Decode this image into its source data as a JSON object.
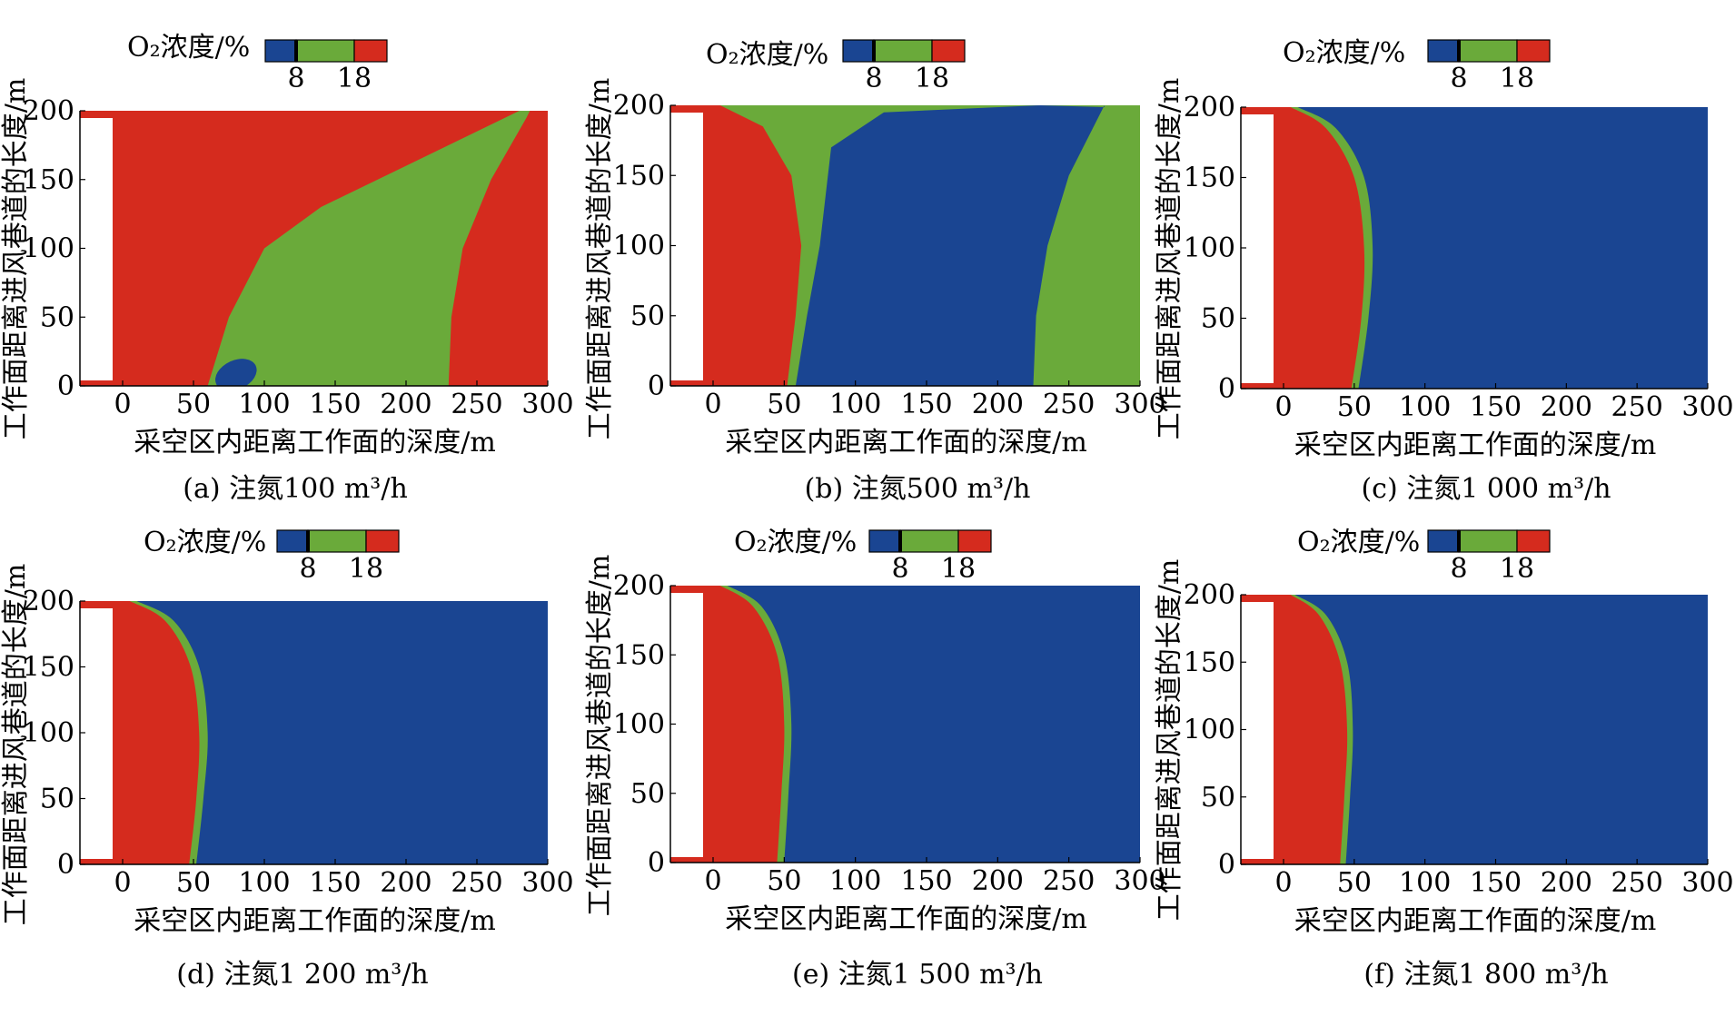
{
  "figure": {
    "panels": [
      {
        "caption": "(a) 注氮100 m³/h",
        "case": "a"
      },
      {
        "caption": "(b) 注氮500 m³/h",
        "case": "b"
      },
      {
        "caption": "(c) 注氮1 000 m³/h",
        "case": "c"
      },
      {
        "caption": "(d) 注氮1 200 m³/h",
        "case": "d"
      },
      {
        "caption": "(e) 注氮1 500 m³/h",
        "case": "e"
      },
      {
        "caption": "(f) 注氮1 800 m³/h",
        "case": "f"
      }
    ]
  },
  "chart_data": [
    {
      "type": "heatmap",
      "subplot": "a",
      "xlabel": "采空区内距离工作面的深度/m",
      "ylabel": "工作面距离进风巷道的长度/m",
      "xlim": [
        -30,
        300
      ],
      "ylim": [
        0,
        200
      ],
      "xticks": [
        0,
        50,
        100,
        150,
        200,
        250,
        300
      ],
      "yticks": [
        0,
        50,
        100,
        150,
        200
      ],
      "legend": {
        "title": "O₂浓度/%",
        "thresholds": [
          8,
          18
        ],
        "colors": [
          "#1a4592",
          "#6aaa3a",
          "#d52b1e"
        ],
        "placement": "top"
      },
      "regions_description": "Red (>18%) near working face and at deep far side (>240 m); green band (8-18%) diagonal from x≈60 at bottom to x≈230 at top; small blue (<8%) patch near x≈80, y≈10.",
      "boundaries": {
        "red_green": [
          [
            60,
            0
          ],
          [
            75,
            50
          ],
          [
            100,
            100
          ],
          [
            140,
            130
          ],
          [
            200,
            160
          ],
          [
            280,
            200
          ]
        ],
        "green_red_far": [
          [
            230,
            0
          ],
          [
            232,
            50
          ],
          [
            240,
            100
          ],
          [
            260,
            150
          ],
          [
            285,
            195
          ]
        ],
        "blue_patch_center": [
          80,
          8
        ]
      }
    },
    {
      "type": "heatmap",
      "subplot": "b",
      "xlabel": "采空区内距离工作面的深度/m",
      "ylabel": "工作面距离进风巷道的长度/m",
      "xlim": [
        -30,
        300
      ],
      "ylim": [
        0,
        200
      ],
      "xticks": [
        0,
        50,
        100,
        150,
        200,
        250,
        300
      ],
      "yticks": [
        0,
        50,
        100,
        150,
        200
      ],
      "legend": {
        "title": "O₂浓度/%",
        "thresholds": [
          8,
          18
        ],
        "colors": [
          "#1a4592",
          "#6aaa3a",
          "#d52b1e"
        ],
        "placement": "top"
      },
      "regions_description": "Red zone near face to x≈50-65; thin green band; blue central zone to x≈225; green far zone beyond.",
      "boundaries": {
        "red_green": [
          [
            52,
            0
          ],
          [
            58,
            50
          ],
          [
            62,
            100
          ],
          [
            55,
            150
          ],
          [
            35,
            185
          ],
          [
            5,
            200
          ]
        ],
        "green_blue": [
          [
            58,
            0
          ],
          [
            66,
            50
          ],
          [
            75,
            100
          ],
          [
            83,
            170
          ],
          [
            120,
            195
          ],
          [
            230,
            200
          ]
        ],
        "blue_green_far": [
          [
            225,
            0
          ],
          [
            227,
            50
          ],
          [
            235,
            100
          ],
          [
            250,
            150
          ],
          [
            275,
            200
          ]
        ]
      }
    },
    {
      "type": "heatmap",
      "subplot": "c",
      "xlabel": "采空区内距离工作面的深度/m",
      "ylabel": "工作面距离进风巷道的长度/m",
      "xlim": [
        -30,
        300
      ],
      "ylim": [
        0,
        200
      ],
      "xticks": [
        0,
        50,
        100,
        150,
        200,
        250,
        300
      ],
      "yticks": [
        0,
        50,
        100,
        150,
        200
      ],
      "legend": {
        "title": "O₂浓度/%",
        "thresholds": [
          8,
          18
        ],
        "colors": [
          "#1a4592",
          "#6aaa3a",
          "#d52b1e"
        ],
        "placement": "top"
      },
      "boundaries": {
        "red_green": [
          [
            48,
            0
          ],
          [
            55,
            50
          ],
          [
            57,
            100
          ],
          [
            50,
            150
          ],
          [
            30,
            185
          ],
          [
            5,
            200
          ]
        ],
        "green_blue": [
          [
            53,
            0
          ],
          [
            60,
            50
          ],
          [
            63,
            100
          ],
          [
            57,
            150
          ],
          [
            37,
            185
          ],
          [
            10,
            200
          ]
        ]
      }
    },
    {
      "type": "heatmap",
      "subplot": "d",
      "xlabel": "采空区内距离工作面的深度/m",
      "ylabel": "工作面距离进风巷道的长度/m",
      "xlim": [
        -30,
        300
      ],
      "ylim": [
        0,
        200
      ],
      "xticks": [
        0,
        50,
        100,
        150,
        200,
        250,
        300
      ],
      "yticks": [
        0,
        50,
        100,
        150,
        200
      ],
      "legend": {
        "title": "O₂浓度/%",
        "thresholds": [
          8,
          18
        ],
        "colors": [
          "#1a4592",
          "#6aaa3a",
          "#d52b1e"
        ],
        "placement": "top"
      },
      "boundaries": {
        "red_green": [
          [
            47,
            0
          ],
          [
            52,
            50
          ],
          [
            54,
            100
          ],
          [
            48,
            150
          ],
          [
            30,
            185
          ],
          [
            5,
            200
          ]
        ],
        "green_blue": [
          [
            52,
            0
          ],
          [
            57,
            50
          ],
          [
            60,
            100
          ],
          [
            54,
            150
          ],
          [
            36,
            185
          ],
          [
            10,
            200
          ]
        ]
      }
    },
    {
      "type": "heatmap",
      "subplot": "e",
      "xlabel": "采空区内距离工作面的深度/m",
      "ylabel": "工作面距离进风巷道的长度/m",
      "xlim": [
        -30,
        300
      ],
      "ylim": [
        0,
        200
      ],
      "xticks": [
        0,
        50,
        100,
        150,
        200,
        250,
        300
      ],
      "yticks": [
        0,
        50,
        100,
        150,
        200
      ],
      "legend": {
        "title": "O₂浓度/%",
        "thresholds": [
          8,
          18
        ],
        "colors": [
          "#1a4592",
          "#6aaa3a",
          "#d52b1e"
        ],
        "placement": "top"
      },
      "boundaries": {
        "red_green": [
          [
            45,
            0
          ],
          [
            48,
            50
          ],
          [
            50,
            100
          ],
          [
            45,
            150
          ],
          [
            28,
            185
          ],
          [
            5,
            200
          ]
        ],
        "green_blue": [
          [
            50,
            0
          ],
          [
            53,
            50
          ],
          [
            55,
            100
          ],
          [
            50,
            150
          ],
          [
            34,
            185
          ],
          [
            10,
            200
          ]
        ]
      }
    },
    {
      "type": "heatmap",
      "subplot": "f",
      "xlabel": "采空区内距离工作面的深度/m",
      "ylabel": "工作面距离进风巷道的长度/m",
      "xlim": [
        -30,
        300
      ],
      "ylim": [
        0,
        200
      ],
      "xticks": [
        0,
        50,
        100,
        150,
        200,
        250,
        300
      ],
      "yticks": [
        0,
        50,
        100,
        150,
        200
      ],
      "legend": {
        "title": "O₂浓度/%",
        "thresholds": [
          8,
          18
        ],
        "colors": [
          "#1a4592",
          "#6aaa3a",
          "#d52b1e"
        ],
        "placement": "top"
      },
      "boundaries": {
        "red_green": [
          [
            40,
            0
          ],
          [
            43,
            50
          ],
          [
            45,
            100
          ],
          [
            40,
            150
          ],
          [
            25,
            185
          ],
          [
            5,
            200
          ]
        ],
        "green_blue": [
          [
            44,
            0
          ],
          [
            47,
            50
          ],
          [
            49,
            100
          ],
          [
            45,
            150
          ],
          [
            30,
            185
          ],
          [
            8,
            200
          ]
        ]
      }
    }
  ]
}
